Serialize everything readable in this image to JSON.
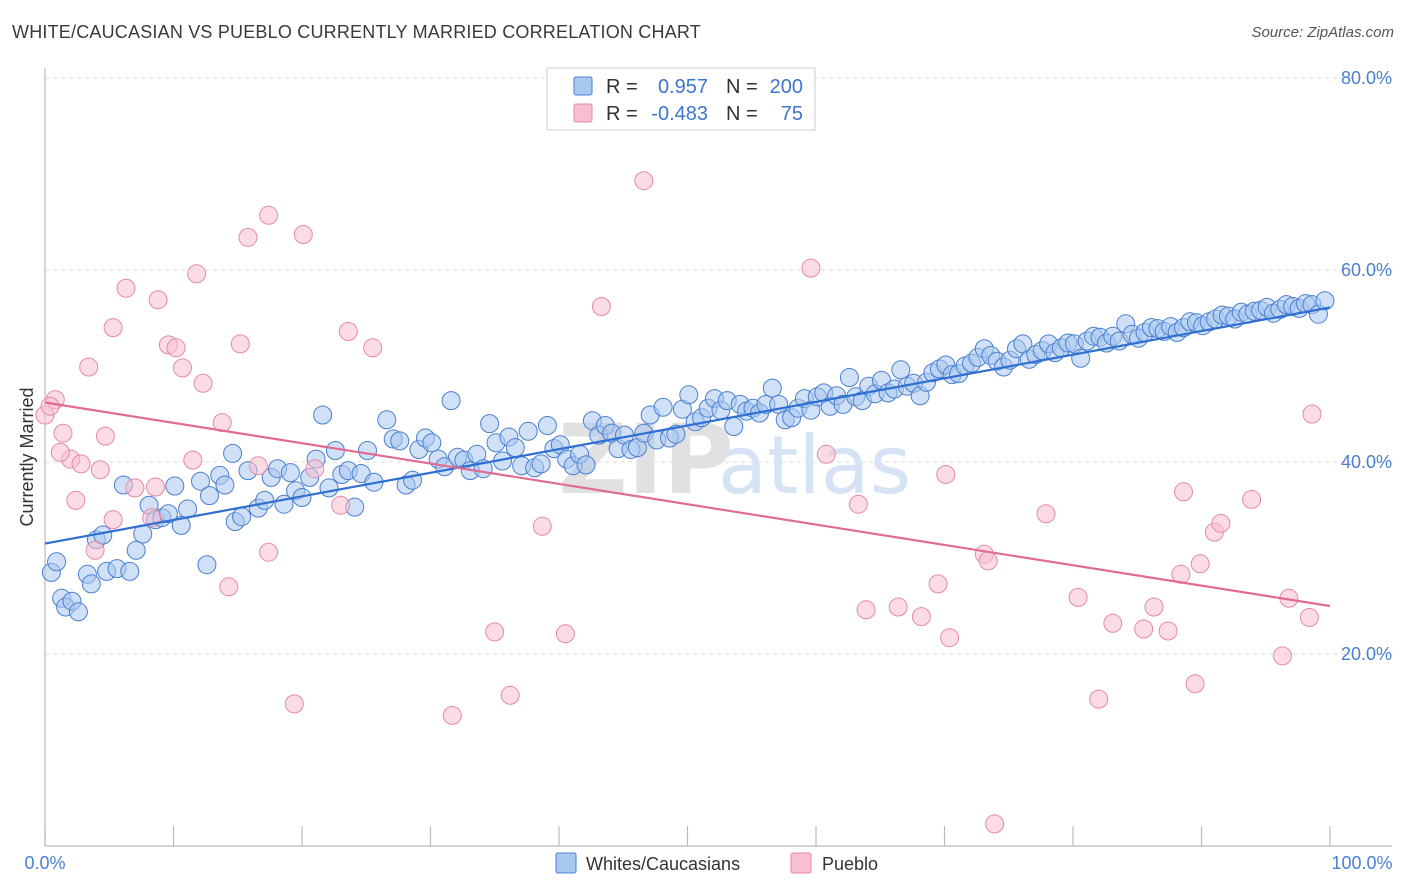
{
  "title": "WHITE/CAUCASIAN VS PUEBLO CURRENTLY MARRIED CORRELATION CHART",
  "source": "Source: ZipAtlas.com",
  "watermark": {
    "zip": "ZIP",
    "atlas": "atlas"
  },
  "legend": {
    "rows": [
      {
        "r_label": "R =",
        "r_value": "0.957",
        "n_label": "N =",
        "n_value": "200"
      },
      {
        "r_label": "R =",
        "r_value": "-0.483",
        "n_label": "N =",
        "n_value": "75"
      }
    ]
  },
  "bottom_legend": [
    "Whites/Caucasians",
    "Pueblo"
  ],
  "colors": {
    "blue_fill": "#a9c8f0",
    "blue_stroke": "#4a7fd1",
    "blue_line": "#2f6fd1",
    "pink_fill": "#f7bfd0",
    "pink_stroke": "#e58aa7",
    "pink_line": "#e06b95",
    "grid": "#dddddd",
    "axis_text": "#4a7fd1"
  },
  "chart_data": {
    "type": "scatter",
    "title": "WHITE/CAUCASIAN VS PUEBLO CURRENTLY MARRIED CORRELATION CHART",
    "xlabel": "",
    "ylabel": "Currently Married",
    "xlim": [
      0,
      100
    ],
    "ylim": [
      0,
      80
    ],
    "x_ticks": [
      "0.0%",
      "100.0%"
    ],
    "y_ticks": [
      {
        "value": 20,
        "label": "20.0%"
      },
      {
        "value": 40,
        "label": "40.0%"
      },
      {
        "value": 60,
        "label": "60.0%"
      },
      {
        "value": 80,
        "label": "80.0%"
      }
    ],
    "grid": true,
    "legend_position": "top-center",
    "series": [
      {
        "name": "Whites/Caucasians",
        "r": 0.957,
        "n": 200,
        "trend": {
          "x": [
            0,
            100
          ],
          "y": [
            31.5,
            56.1
          ]
        },
        "points": [
          [
            0.5,
            28.5
          ],
          [
            0.9,
            29.6
          ],
          [
            1.3,
            25.8
          ],
          [
            1.6,
            24.9
          ],
          [
            2.1,
            25.5
          ],
          [
            2.6,
            24.4
          ],
          [
            3.3,
            28.3
          ],
          [
            3.6,
            27.3
          ],
          [
            4.0,
            31.9
          ],
          [
            4.5,
            32.4
          ],
          [
            4.8,
            28.6
          ],
          [
            5.6,
            28.9
          ],
          [
            6.1,
            37.6
          ],
          [
            6.6,
            28.6
          ],
          [
            7.1,
            30.8
          ],
          [
            7.6,
            32.5
          ],
          [
            8.1,
            35.5
          ],
          [
            8.6,
            34.0
          ],
          [
            9.1,
            34.2
          ],
          [
            9.6,
            34.6
          ],
          [
            10.1,
            37.5
          ],
          [
            10.6,
            33.4
          ],
          [
            11.1,
            35.1
          ],
          [
            12.1,
            38.0
          ],
          [
            12.6,
            29.3
          ],
          [
            12.8,
            36.5
          ],
          [
            13.6,
            38.6
          ],
          [
            14.0,
            37.6
          ],
          [
            14.6,
            40.9
          ],
          [
            14.8,
            33.8
          ],
          [
            15.3,
            34.3
          ],
          [
            15.8,
            39.1
          ],
          [
            16.6,
            35.2
          ],
          [
            17.1,
            36.0
          ],
          [
            17.6,
            38.4
          ],
          [
            18.1,
            39.3
          ],
          [
            18.6,
            35.6
          ],
          [
            19.1,
            38.9
          ],
          [
            19.5,
            37.0
          ],
          [
            20.0,
            36.3
          ],
          [
            20.6,
            38.4
          ],
          [
            21.1,
            40.3
          ],
          [
            21.6,
            44.9
          ],
          [
            22.1,
            37.3
          ],
          [
            22.6,
            41.2
          ],
          [
            23.1,
            38.7
          ],
          [
            23.6,
            39.1
          ],
          [
            24.1,
            35.3
          ],
          [
            24.6,
            38.8
          ],
          [
            25.1,
            41.2
          ],
          [
            25.6,
            37.9
          ],
          [
            26.6,
            44.4
          ],
          [
            27.1,
            42.4
          ],
          [
            27.6,
            42.2
          ],
          [
            28.1,
            37.6
          ],
          [
            28.6,
            38.1
          ],
          [
            29.1,
            41.3
          ],
          [
            29.6,
            42.5
          ],
          [
            30.1,
            42.0
          ],
          [
            30.6,
            40.3
          ],
          [
            31.1,
            39.5
          ],
          [
            31.6,
            46.4
          ],
          [
            32.1,
            40.5
          ],
          [
            32.6,
            40.2
          ],
          [
            33.1,
            39.1
          ],
          [
            33.6,
            40.8
          ],
          [
            34.1,
            39.3
          ],
          [
            34.6,
            44.0
          ],
          [
            35.1,
            42.0
          ],
          [
            35.6,
            40.1
          ],
          [
            36.1,
            42.6
          ],
          [
            36.6,
            41.5
          ],
          [
            37.1,
            39.6
          ],
          [
            37.6,
            43.2
          ],
          [
            38.1,
            39.4
          ],
          [
            38.6,
            39.8
          ],
          [
            39.1,
            43.8
          ],
          [
            39.6,
            41.4
          ],
          [
            40.1,
            41.8
          ],
          [
            40.6,
            40.3
          ],
          [
            41.1,
            39.6
          ],
          [
            41.6,
            40.8
          ],
          [
            42.1,
            39.7
          ],
          [
            42.6,
            44.3
          ],
          [
            43.1,
            42.8
          ],
          [
            43.6,
            43.8
          ],
          [
            44.1,
            43.0
          ],
          [
            44.6,
            41.4
          ],
          [
            45.1,
            42.8
          ],
          [
            45.6,
            41.3
          ],
          [
            46.1,
            41.5
          ],
          [
            46.6,
            43.0
          ],
          [
            47.1,
            44.9
          ],
          [
            47.6,
            42.3
          ],
          [
            48.1,
            45.7
          ],
          [
            48.6,
            42.5
          ],
          [
            49.1,
            42.9
          ],
          [
            49.6,
            45.5
          ],
          [
            50.1,
            47.0
          ],
          [
            50.6,
            44.2
          ],
          [
            51.1,
            44.6
          ],
          [
            51.6,
            45.6
          ],
          [
            52.1,
            46.6
          ],
          [
            52.6,
            45.4
          ],
          [
            53.1,
            46.4
          ],
          [
            53.6,
            43.7
          ],
          [
            54.1,
            46.0
          ],
          [
            54.6,
            45.3
          ],
          [
            55.1,
            45.6
          ],
          [
            55.6,
            45.1
          ],
          [
            56.1,
            46.0
          ],
          [
            56.6,
            47.7
          ],
          [
            57.1,
            46.0
          ],
          [
            57.6,
            44.4
          ],
          [
            58.1,
            44.6
          ],
          [
            58.6,
            45.6
          ],
          [
            59.1,
            46.6
          ],
          [
            59.6,
            45.4
          ],
          [
            60.1,
            46.8
          ],
          [
            60.6,
            47.2
          ],
          [
            61.1,
            45.8
          ],
          [
            61.6,
            46.9
          ],
          [
            62.1,
            46.0
          ],
          [
            62.6,
            48.8
          ],
          [
            63.1,
            46.8
          ],
          [
            63.6,
            46.4
          ],
          [
            64.1,
            47.9
          ],
          [
            64.6,
            47.1
          ],
          [
            65.1,
            48.5
          ],
          [
            65.6,
            47.2
          ],
          [
            66.1,
            47.6
          ],
          [
            66.6,
            49.6
          ],
          [
            67.1,
            47.9
          ],
          [
            67.6,
            48.2
          ],
          [
            68.1,
            46.9
          ],
          [
            68.6,
            48.3
          ],
          [
            69.1,
            49.3
          ],
          [
            69.6,
            49.7
          ],
          [
            70.1,
            50.1
          ],
          [
            70.6,
            49.1
          ],
          [
            71.1,
            49.2
          ],
          [
            71.6,
            50.0
          ],
          [
            72.1,
            50.3
          ],
          [
            72.6,
            50.9
          ],
          [
            73.1,
            51.8
          ],
          [
            73.6,
            51.1
          ],
          [
            74.1,
            50.5
          ],
          [
            74.6,
            49.9
          ],
          [
            75.1,
            50.6
          ],
          [
            75.6,
            51.8
          ],
          [
            76.1,
            52.3
          ],
          [
            76.6,
            50.7
          ],
          [
            77.1,
            51.2
          ],
          [
            77.6,
            51.6
          ],
          [
            78.1,
            52.3
          ],
          [
            78.6,
            51.4
          ],
          [
            79.1,
            51.9
          ],
          [
            79.6,
            52.4
          ],
          [
            80.1,
            52.3
          ],
          [
            80.6,
            50.8
          ],
          [
            81.1,
            52.6
          ],
          [
            81.6,
            53.1
          ],
          [
            82.1,
            53.0
          ],
          [
            82.6,
            52.4
          ],
          [
            83.1,
            53.1
          ],
          [
            83.6,
            52.6
          ],
          [
            84.1,
            54.4
          ],
          [
            84.6,
            53.3
          ],
          [
            85.1,
            52.9
          ],
          [
            85.6,
            53.5
          ],
          [
            86.1,
            54.0
          ],
          [
            86.6,
            53.9
          ],
          [
            87.1,
            53.6
          ],
          [
            87.6,
            54.1
          ],
          [
            88.1,
            53.5
          ],
          [
            88.6,
            54.0
          ],
          [
            89.1,
            54.6
          ],
          [
            89.6,
            54.5
          ],
          [
            90.1,
            54.2
          ],
          [
            90.6,
            54.6
          ],
          [
            91.1,
            54.9
          ],
          [
            91.6,
            55.3
          ],
          [
            92.1,
            55.2
          ],
          [
            92.6,
            54.9
          ],
          [
            93.1,
            55.6
          ],
          [
            93.6,
            55.4
          ],
          [
            94.1,
            55.7
          ],
          [
            94.6,
            55.8
          ],
          [
            95.1,
            56.1
          ],
          [
            95.6,
            55.5
          ],
          [
            96.1,
            55.9
          ],
          [
            96.6,
            56.4
          ],
          [
            97.1,
            56.2
          ],
          [
            97.6,
            56.0
          ],
          [
            98.1,
            56.5
          ],
          [
            98.6,
            56.4
          ],
          [
            99.1,
            55.4
          ],
          [
            99.6,
            56.8
          ]
        ]
      },
      {
        "name": "Pueblo",
        "r": -0.483,
        "n": 75,
        "trend": {
          "x": [
            0,
            100
          ],
          "y": [
            46.2,
            25.0
          ]
        },
        "points": [
          [
            0.8,
            46.5
          ],
          [
            1.4,
            43.0
          ],
          [
            2.0,
            40.3
          ],
          [
            2.4,
            36.0
          ],
          [
            2.8,
            39.8
          ],
          [
            3.4,
            49.9
          ],
          [
            3.9,
            30.8
          ],
          [
            4.3,
            39.2
          ],
          [
            4.7,
            42.7
          ],
          [
            5.3,
            34.0
          ],
          [
            5.3,
            54.0
          ],
          [
            6.3,
            58.1
          ],
          [
            7.0,
            37.3
          ],
          [
            8.3,
            34.2
          ],
          [
            8.6,
            37.4
          ],
          [
            8.8,
            56.9
          ],
          [
            9.6,
            52.2
          ],
          [
            10.2,
            51.9
          ],
          [
            10.7,
            49.8
          ],
          [
            11.5,
            40.2
          ],
          [
            11.8,
            59.6
          ],
          [
            12.3,
            48.2
          ],
          [
            13.8,
            44.1
          ],
          [
            14.3,
            27.0
          ],
          [
            15.2,
            52.3
          ],
          [
            15.8,
            63.4
          ],
          [
            16.6,
            39.6
          ],
          [
            17.4,
            65.7
          ],
          [
            17.4,
            30.6
          ],
          [
            19.4,
            14.8
          ],
          [
            20.1,
            63.7
          ],
          [
            21.0,
            39.3
          ],
          [
            23.0,
            35.5
          ],
          [
            23.6,
            53.6
          ],
          [
            25.5,
            51.9
          ],
          [
            31.7,
            13.6
          ],
          [
            35.0,
            22.3
          ],
          [
            36.2,
            15.7
          ],
          [
            38.7,
            33.3
          ],
          [
            40.5,
            22.1
          ],
          [
            43.3,
            56.2
          ],
          [
            46.6,
            69.3
          ],
          [
            59.6,
            60.2
          ],
          [
            60.8,
            40.8
          ],
          [
            63.3,
            35.6
          ],
          [
            63.9,
            24.6
          ],
          [
            66.4,
            24.9
          ],
          [
            68.2,
            23.9
          ],
          [
            69.5,
            27.3
          ],
          [
            70.1,
            38.7
          ],
          [
            70.4,
            21.7
          ],
          [
            73.1,
            30.4
          ],
          [
            73.4,
            29.7
          ],
          [
            73.9,
            2.3
          ],
          [
            77.9,
            34.6
          ],
          [
            80.4,
            25.9
          ],
          [
            82.0,
            15.3
          ],
          [
            83.1,
            23.2
          ],
          [
            85.5,
            22.6
          ],
          [
            86.3,
            24.9
          ],
          [
            87.4,
            22.4
          ],
          [
            88.4,
            28.3
          ],
          [
            88.6,
            36.9
          ],
          [
            89.5,
            16.9
          ],
          [
            89.9,
            29.4
          ],
          [
            91.0,
            32.7
          ],
          [
            91.5,
            33.6
          ],
          [
            93.9,
            36.1
          ],
          [
            96.3,
            19.8
          ],
          [
            96.8,
            25.8
          ],
          [
            98.4,
            23.8
          ],
          [
            98.6,
            45.0
          ],
          [
            0.0,
            44.9
          ],
          [
            0.4,
            45.8
          ],
          [
            1.2,
            41.0
          ]
        ]
      }
    ]
  }
}
